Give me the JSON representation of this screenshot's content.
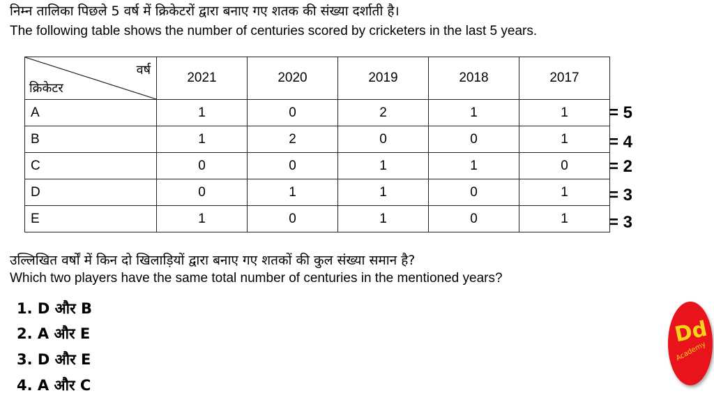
{
  "question": {
    "hindi": "निम्न तालिका पिछले 5 वर्ष में क्रिकेटरों द्वारा बनाए गए शतक की संख्या दर्शाती है।",
    "english": "The following table shows the number of centuries scored by cricketers in the last 5 years."
  },
  "table": {
    "corner_top": "वर्ष",
    "corner_bottom": "क्रिकेटर",
    "years": [
      "2021",
      "2020",
      "2019",
      "2018",
      "2017"
    ],
    "rows": [
      {
        "name": "A",
        "values": [
          "1",
          "0",
          "2",
          "1",
          "1"
        ],
        "total": "= 5"
      },
      {
        "name": "B",
        "values": [
          "1",
          "2",
          "0",
          "0",
          "1"
        ],
        "total": "= 4"
      },
      {
        "name": "C",
        "values": [
          "0",
          "0",
          "1",
          "1",
          "0"
        ],
        "total": "= 2"
      },
      {
        "name": "D",
        "values": [
          "0",
          "1",
          "1",
          "0",
          "1"
        ],
        "total": "= 3"
      },
      {
        "name": "E",
        "values": [
          "1",
          "0",
          "1",
          "0",
          "1"
        ],
        "total": "= 3"
      }
    ]
  },
  "task": {
    "hindi": "उल्लिखित वर्षों में किन दो खिलाड़ियों द्वारा बनाए गए शतकों की कुल संख्या समान है?",
    "english": "Which two players have the same total number of centuries in the mentioned years?"
  },
  "options": [
    "1. D और  B",
    "2. A और  E",
    "3. D और  E",
    "4. A और  C"
  ],
  "logo": {
    "mark": "Dd",
    "text": "Academy",
    "bg_color": "#e8131b",
    "fg_color": "#f6d21a"
  }
}
